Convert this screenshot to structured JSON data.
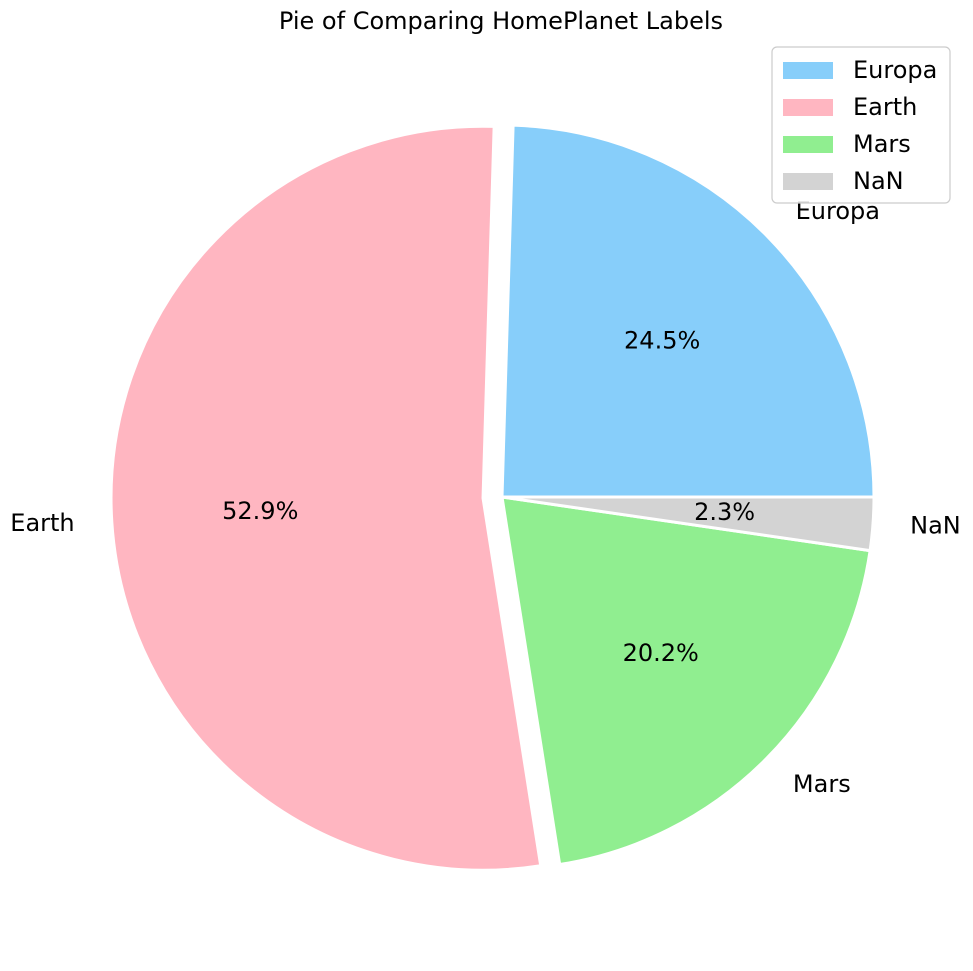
{
  "chart_data": {
    "type": "pie",
    "title": "Pie of Comparing HomePlanet Labels",
    "slices": [
      {
        "label": "Europa",
        "value": 24.5,
        "display": "24.5%",
        "color": "#87CEFA",
        "explode": false
      },
      {
        "label": "Earth",
        "value": 52.9,
        "display": "52.9%",
        "color": "#FFB6C1",
        "explode": true
      },
      {
        "label": "Mars",
        "value": 20.2,
        "display": "20.2%",
        "color": "#90EE90",
        "explode": false
      },
      {
        "label": "NaN",
        "value": 2.3,
        "display": "2.3%",
        "color": "#D3D3D3",
        "explode": false
      }
    ],
    "start_angle_deg": 0,
    "direction": "counterclockwise",
    "legend": {
      "position": "top-right",
      "entries": [
        "Europa",
        "Earth",
        "Mars",
        "NaN"
      ]
    },
    "edge_color": "#ffffff"
  }
}
